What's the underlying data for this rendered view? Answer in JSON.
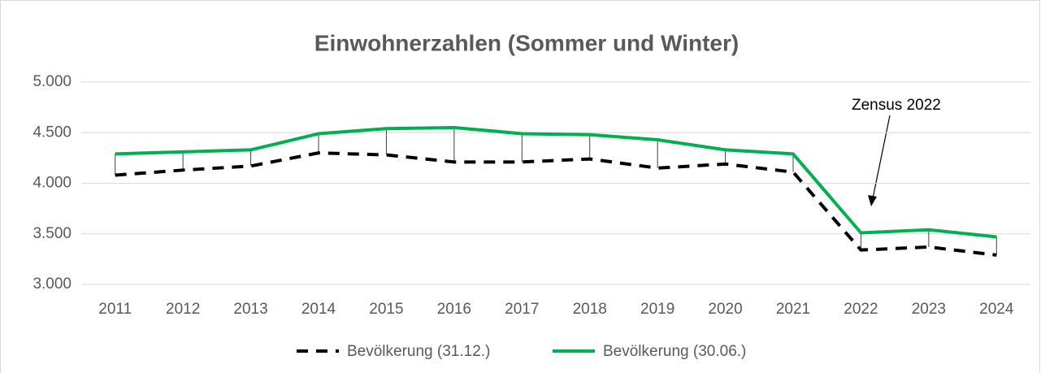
{
  "chart_data": {
    "type": "line",
    "title": "Einwohnerzahlen (Sommer und Winter)",
    "categories": [
      "2011",
      "2012",
      "2013",
      "2014",
      "2015",
      "2016",
      "2017",
      "2018",
      "2019",
      "2020",
      "2021",
      "2022",
      "2023",
      "2024"
    ],
    "series": [
      {
        "name": "Bevölkerung (31.12.)",
        "color": "#000000",
        "dashed": true,
        "values": [
          4080,
          4130,
          4170,
          4300,
          4280,
          4210,
          4210,
          4240,
          4150,
          4190,
          4110,
          3340,
          3370,
          3290
        ]
      },
      {
        "name": "Bevölkerung (30.06.)",
        "color": "#00b050",
        "dashed": false,
        "values": [
          4290,
          4310,
          4330,
          4490,
          4540,
          4550,
          4490,
          4480,
          4430,
          4330,
          4290,
          3510,
          3540,
          3470
        ]
      }
    ],
    "ylim": [
      3000,
      5000
    ],
    "yticks": [
      {
        "value": 3000,
        "label": "3.000"
      },
      {
        "value": 3500,
        "label": "3.500"
      },
      {
        "value": 4000,
        "label": "4.000"
      },
      {
        "value": 4500,
        "label": "4.500"
      },
      {
        "value": 5000,
        "label": "5.000"
      }
    ],
    "grid": true,
    "drop_lines": true,
    "legend": "bottom",
    "annotations": [
      {
        "text": "Zensus 2022"
      }
    ]
  }
}
